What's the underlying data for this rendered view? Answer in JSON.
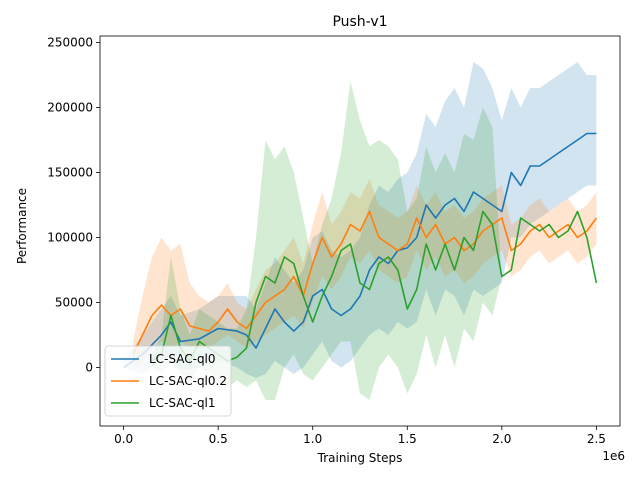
{
  "chart_data": {
    "type": "line",
    "title": "Push-v1",
    "xlabel": "Training Steps",
    "ylabel": "Performance",
    "x_multiplier_label": "1e6",
    "xlim": [
      -0.125,
      2.625
    ],
    "ylim": [
      -45000,
      255000
    ],
    "x_ticks": [
      0.0,
      0.5,
      1.0,
      1.5,
      2.0,
      2.5
    ],
    "x_tick_labels": [
      "0.0",
      "0.5",
      "1.0",
      "1.5",
      "2.0",
      "2.5"
    ],
    "y_ticks": [
      0,
      50000,
      100000,
      150000,
      200000,
      250000
    ],
    "y_tick_labels": [
      "0",
      "50000",
      "100000",
      "150000",
      "200000",
      "250000"
    ],
    "legend_position": "lower-left",
    "series": [
      {
        "name": "LC-SAC-ql0",
        "color": "#1f77b4",
        "x": [
          0.0,
          0.1,
          0.2,
          0.25,
          0.3,
          0.4,
          0.5,
          0.6,
          0.65,
          0.7,
          0.75,
          0.8,
          0.85,
          0.9,
          0.95,
          1.0,
          1.05,
          1.1,
          1.15,
          1.2,
          1.25,
          1.3,
          1.35,
          1.4,
          1.45,
          1.5,
          1.55,
          1.6,
          1.65,
          1.7,
          1.75,
          1.8,
          1.85,
          1.9,
          1.95,
          2.0,
          2.05,
          2.1,
          2.15,
          2.2,
          2.25,
          2.3,
          2.35,
          2.4,
          2.45,
          2.5
        ],
        "mean": [
          0,
          10000,
          25000,
          35000,
          20000,
          22000,
          30000,
          28000,
          25000,
          15000,
          30000,
          45000,
          35000,
          28000,
          35000,
          55000,
          60000,
          45000,
          40000,
          45000,
          55000,
          75000,
          85000,
          80000,
          90000,
          92000,
          100000,
          125000,
          115000,
          125000,
          130000,
          120000,
          135000,
          130000,
          125000,
          120000,
          150000,
          140000,
          155000,
          155000,
          160000,
          165000,
          170000,
          175000,
          180000,
          180000
        ],
        "lower": [
          0,
          -5000,
          5000,
          10000,
          -2000,
          0,
          5000,
          0,
          -5000,
          -8000,
          -5000,
          5000,
          0,
          -5000,
          0,
          10000,
          20000,
          5000,
          0,
          5000,
          15000,
          25000,
          30000,
          25000,
          35000,
          30000,
          35000,
          60000,
          40000,
          60000,
          55000,
          40000,
          60000,
          55000,
          60000,
          65000,
          100000,
          100000,
          110000,
          115000,
          120000,
          125000,
          130000,
          135000,
          140000,
          140000
        ],
        "upper": [
          5000,
          25000,
          45000,
          55000,
          40000,
          45000,
          55000,
          55000,
          55000,
          45000,
          65000,
          85000,
          75000,
          65000,
          75000,
          100000,
          105000,
          90000,
          85000,
          90000,
          100000,
          125000,
          140000,
          135000,
          145000,
          150000,
          165000,
          195000,
          185000,
          205000,
          215000,
          200000,
          235000,
          230000,
          215000,
          190000,
          215000,
          200000,
          215000,
          215000,
          220000,
          225000,
          230000,
          235000,
          225000,
          225000
        ]
      },
      {
        "name": "LC-SAC-ql0.2",
        "color": "#ff7f0e",
        "x": [
          0.05,
          0.1,
          0.15,
          0.2,
          0.25,
          0.3,
          0.35,
          0.4,
          0.45,
          0.5,
          0.55,
          0.6,
          0.65,
          0.7,
          0.75,
          0.8,
          0.85,
          0.9,
          0.95,
          1.0,
          1.05,
          1.1,
          1.15,
          1.2,
          1.25,
          1.3,
          1.35,
          1.4,
          1.45,
          1.5,
          1.55,
          1.6,
          1.65,
          1.7,
          1.75,
          1.8,
          1.85,
          1.9,
          1.95,
          2.0,
          2.05,
          2.1,
          2.15,
          2.2,
          2.25,
          2.3,
          2.35,
          2.4,
          2.45,
          2.5
        ],
        "mean": [
          10000,
          25000,
          40000,
          48000,
          40000,
          45000,
          32000,
          30000,
          28000,
          35000,
          45000,
          35000,
          30000,
          40000,
          50000,
          55000,
          60000,
          70000,
          55000,
          80000,
          100000,
          85000,
          95000,
          110000,
          105000,
          120000,
          100000,
          95000,
          90000,
          95000,
          115000,
          100000,
          110000,
          95000,
          100000,
          90000,
          95000,
          105000,
          110000,
          115000,
          90000,
          95000,
          105000,
          110000,
          100000,
          105000,
          110000,
          100000,
          105000,
          115000
        ],
        "lower": [
          0,
          5000,
          15000,
          20000,
          15000,
          20000,
          15000,
          15000,
          15000,
          20000,
          25000,
          20000,
          15000,
          20000,
          25000,
          30000,
          35000,
          40000,
          30000,
          50000,
          70000,
          60000,
          70000,
          85000,
          80000,
          90000,
          75000,
          70000,
          65000,
          70000,
          90000,
          75000,
          85000,
          70000,
          75000,
          65000,
          70000,
          80000,
          85000,
          90000,
          70000,
          75000,
          85000,
          90000,
          80000,
          85000,
          90000,
          80000,
          85000,
          95000
        ],
        "upper": [
          20000,
          55000,
          85000,
          100000,
          90000,
          95000,
          65000,
          55000,
          50000,
          55000,
          65000,
          50000,
          45000,
          60000,
          75000,
          80000,
          90000,
          100000,
          80000,
          110000,
          135000,
          110000,
          120000,
          135000,
          130000,
          145000,
          125000,
          120000,
          115000,
          120000,
          140000,
          125000,
          135000,
          120000,
          125000,
          115000,
          120000,
          130000,
          135000,
          140000,
          110000,
          115000,
          125000,
          130000,
          120000,
          125000,
          130000,
          120000,
          125000,
          135000
        ]
      },
      {
        "name": "LC-SAC-ql1",
        "color": "#2ca02c",
        "x": [
          0.15,
          0.2,
          0.25,
          0.3,
          0.35,
          0.4,
          0.45,
          0.5,
          0.55,
          0.6,
          0.65,
          0.7,
          0.75,
          0.8,
          0.85,
          0.9,
          0.95,
          1.0,
          1.05,
          1.1,
          1.15,
          1.2,
          1.25,
          1.3,
          1.35,
          1.4,
          1.45,
          1.5,
          1.55,
          1.6,
          1.65,
          1.7,
          1.75,
          1.8,
          1.85,
          1.9,
          1.95,
          2.0,
          2.05,
          2.1,
          2.15,
          2.2,
          2.25,
          2.3,
          2.35,
          2.4,
          2.45,
          2.5
        ],
        "mean": [
          5000,
          10000,
          40000,
          15000,
          5000,
          20000,
          15000,
          10000,
          5000,
          8000,
          15000,
          50000,
          70000,
          65000,
          85000,
          80000,
          55000,
          35000,
          55000,
          70000,
          90000,
          95000,
          65000,
          60000,
          80000,
          85000,
          75000,
          45000,
          60000,
          95000,
          75000,
          95000,
          75000,
          100000,
          90000,
          120000,
          110000,
          70000,
          75000,
          115000,
          110000,
          105000,
          110000,
          100000,
          105000,
          120000,
          100000,
          65000
        ],
        "lower": [
          0,
          -5000,
          5000,
          -5000,
          -10000,
          0,
          -5000,
          -10000,
          -15000,
          -10000,
          -15000,
          -10000,
          -25000,
          -25000,
          0,
          10000,
          -5000,
          -10000,
          0,
          10000,
          20000,
          20000,
          -20000,
          -25000,
          0,
          10000,
          0,
          -20000,
          -5000,
          25000,
          0,
          25000,
          0,
          30000,
          20000,
          50000,
          40000,
          70000,
          75000,
          115000,
          110000,
          105000,
          110000,
          100000,
          105000,
          120000,
          100000,
          65000
        ],
        "upper": [
          10000,
          25000,
          85000,
          45000,
          25000,
          45000,
          40000,
          35000,
          30000,
          30000,
          45000,
          100000,
          175000,
          160000,
          170000,
          150000,
          115000,
          80000,
          110000,
          130000,
          165000,
          220000,
          190000,
          170000,
          175000,
          170000,
          160000,
          120000,
          130000,
          170000,
          150000,
          165000,
          150000,
          180000,
          175000,
          200000,
          185000,
          70000,
          75000,
          115000,
          110000,
          105000,
          110000,
          100000,
          105000,
          120000,
          100000,
          65000
        ]
      }
    ]
  }
}
